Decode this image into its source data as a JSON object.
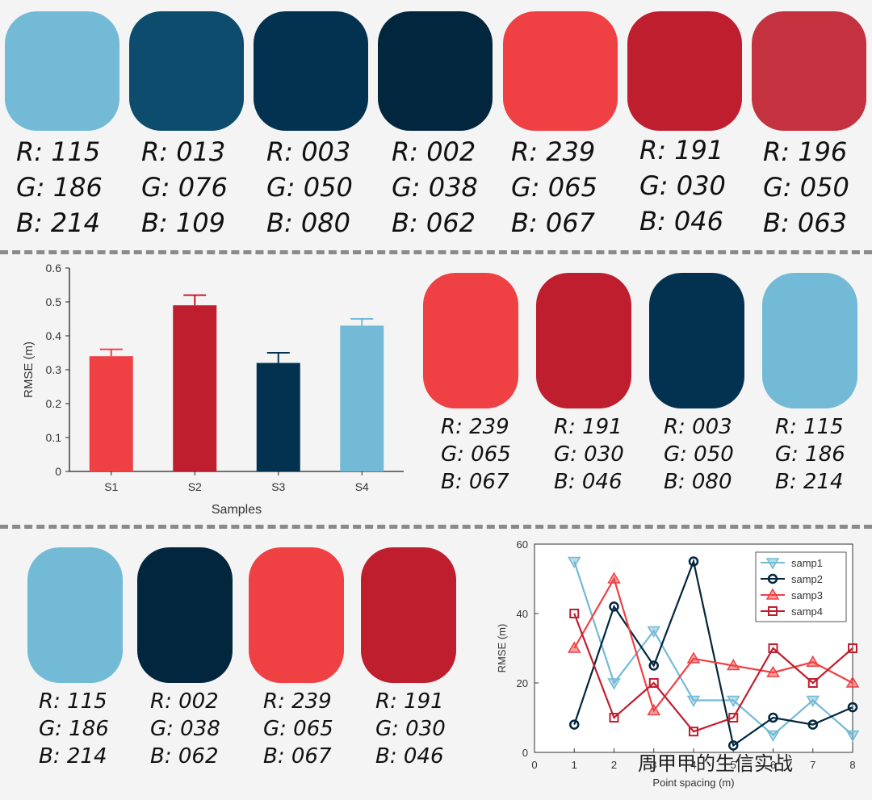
{
  "palettes": [
    {
      "swatches": [
        {
          "r": "R: 115",
          "g": "G: 186",
          "b": "B: 214",
          "hex": "#73bad6"
        },
        {
          "r": "R: 013",
          "g": "G: 076",
          "b": "B: 109",
          "hex": "#0d4c6d"
        },
        {
          "r": "R: 003",
          "g": "G: 050",
          "b": "B: 080",
          "hex": "#033250"
        },
        {
          "r": "R: 002",
          "g": "G: 038",
          "b": "B: 062",
          "hex": "#02263e"
        },
        {
          "r": "R: 239",
          "g": "G: 065",
          "b": "B: 067",
          "hex": "#ef4143"
        },
        {
          "r": "R: 191",
          "g": "G: 030",
          "b": "B: 046",
          "hex": "#bf1e2e"
        },
        {
          "r": "R: 196",
          "g": "G: 050",
          "b": "B: 063",
          "hex": "#c4323f"
        }
      ]
    },
    {
      "swatches": [
        {
          "r": "R: 239",
          "g": "G: 065",
          "b": "B: 067",
          "hex": "#ef4143"
        },
        {
          "r": "R: 191",
          "g": "G: 030",
          "b": "B: 046",
          "hex": "#bf1e2e"
        },
        {
          "r": "R: 003",
          "g": "G: 050",
          "b": "B: 080",
          "hex": "#033250"
        },
        {
          "r": "R: 115",
          "g": "G: 186",
          "b": "B: 214",
          "hex": "#73bad6"
        }
      ]
    },
    {
      "swatches": [
        {
          "r": "R: 115",
          "g": "G: 186",
          "b": "B: 214",
          "hex": "#73bad6"
        },
        {
          "r": "R: 002",
          "g": "G: 038",
          "b": "B: 062",
          "hex": "#02263e"
        },
        {
          "r": "R: 239",
          "g": "G: 065",
          "b": "B: 067",
          "hex": "#ef4143"
        },
        {
          "r": "R: 191",
          "g": "G: 030",
          "b": "B: 046",
          "hex": "#bf1e2e"
        }
      ]
    }
  ],
  "chart_data": [
    {
      "type": "bar",
      "categories": [
        "S1",
        "S2",
        "S3",
        "S4"
      ],
      "values": [
        0.34,
        0.49,
        0.32,
        0.43
      ],
      "errors": [
        0.02,
        0.03,
        0.03,
        0.02
      ],
      "colors": [
        "#ef4143",
        "#bf1e2e",
        "#033250",
        "#73bad6"
      ],
      "xlabel": "Samples",
      "ylabel": "RMSE (m)",
      "ylim": [
        0,
        0.6
      ],
      "yticks": [
        "0",
        "0.1",
        "0.2",
        "0.3",
        "0.4",
        "0.5",
        "0.6"
      ]
    },
    {
      "type": "line",
      "x": [
        1,
        2,
        3,
        4,
        5,
        6,
        7,
        8
      ],
      "xticks": [
        "0",
        "1",
        "2",
        "3",
        "4",
        "5",
        "6",
        "7",
        "8"
      ],
      "xlabel": "Point spacing (m)",
      "ylabel": "RMSE (m)",
      "ylim": [
        0,
        60
      ],
      "yticks": [
        "0",
        "20",
        "40",
        "60"
      ],
      "legend_position": "top-right",
      "series": [
        {
          "name": "samp1",
          "color": "#73bad6",
          "marker": "triangle-down",
          "values": [
            55,
            20,
            35,
            15,
            15,
            5,
            15,
            5
          ]
        },
        {
          "name": "samp2",
          "color": "#02263e",
          "marker": "circle",
          "values": [
            8,
            42,
            25,
            55,
            2,
            10,
            8,
            13
          ]
        },
        {
          "name": "samp3",
          "color": "#ef4143",
          "marker": "triangle-up",
          "values": [
            30,
            50,
            12,
            27,
            25,
            23,
            26,
            20
          ]
        },
        {
          "name": "samp4",
          "color": "#bf1e2e",
          "marker": "square",
          "values": [
            40,
            10,
            20,
            6,
            10,
            30,
            20,
            30
          ]
        }
      ]
    }
  ],
  "watermark": "周甲甲的生信实战"
}
